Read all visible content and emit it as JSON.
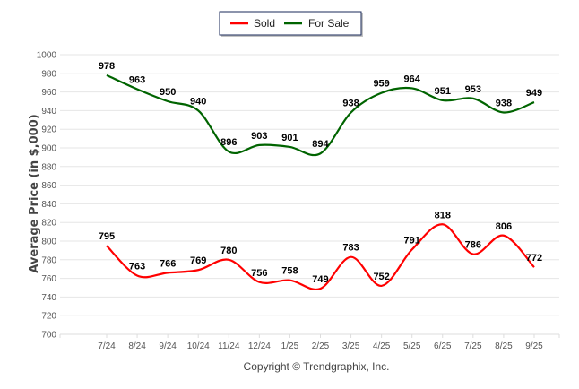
{
  "chart_data": {
    "type": "line",
    "title": "",
    "xlabel": "",
    "ylabel": "Average Price (in $,000)",
    "ylim": [
      700,
      1000
    ],
    "yticks": [
      700,
      720,
      740,
      760,
      780,
      800,
      820,
      840,
      860,
      880,
      900,
      920,
      940,
      960,
      980,
      1000
    ],
    "grid": true,
    "legend_position": "top-center",
    "categories": [
      "7/24",
      "8/24",
      "9/24",
      "10/24",
      "11/24",
      "12/24",
      "1/25",
      "2/25",
      "3/25",
      "4/25",
      "5/25",
      "6/25",
      "7/25",
      "8/25",
      "9/25"
    ],
    "series": [
      {
        "name": "Sold",
        "color": "#ff0000",
        "values": [
          795,
          763,
          766,
          769,
          780,
          756,
          758,
          749,
          783,
          752,
          791,
          818,
          786,
          806,
          772
        ]
      },
      {
        "name": "For Sale",
        "color": "#006400",
        "values": [
          978,
          963,
          950,
          940,
          896,
          903,
          901,
          894,
          938,
          959,
          964,
          951,
          953,
          938,
          949
        ]
      }
    ],
    "footer": "Copyright © Trendgraphix, Inc."
  }
}
